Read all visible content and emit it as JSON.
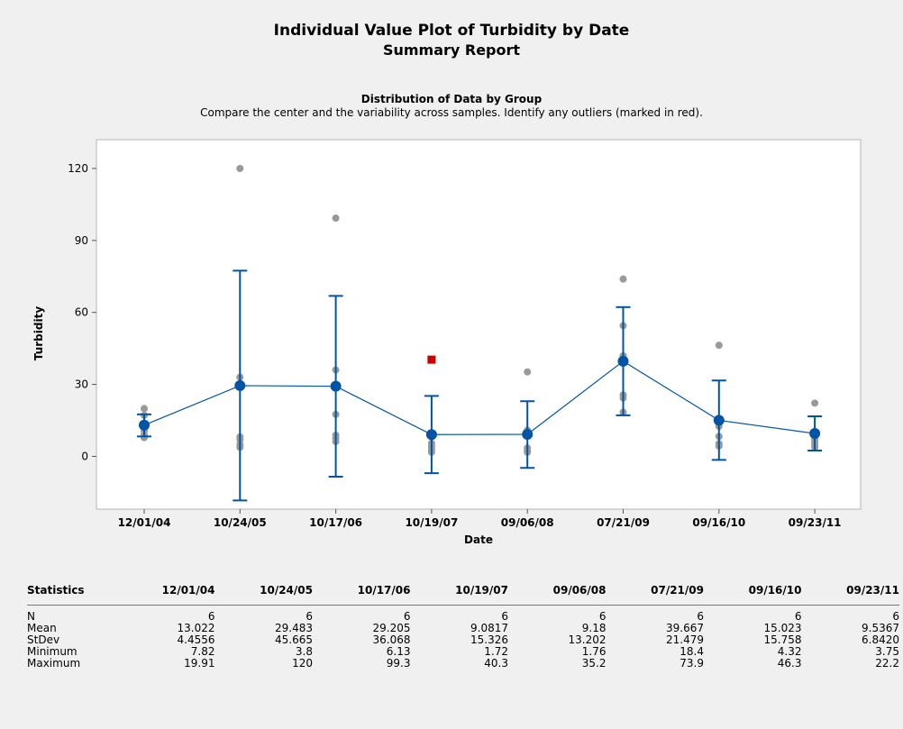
{
  "title": "Individual Value Plot of Turbidity by Date",
  "subtitle": "Summary Report",
  "section_title": "Distribution of Data by Group",
  "section_subtitle": "Compare the center and the variability across samples. Identify any outliers (marked in red).",
  "colors": {
    "mean": "#0054a6",
    "points": "#999999",
    "outlier": "#cc0000",
    "frame": "#b4b4b4"
  },
  "chart_data": {
    "type": "scatter",
    "xlabel": "Date",
    "ylabel": "Turbidity",
    "ylim": [
      -22,
      132
    ],
    "yticks": [
      0,
      30,
      60,
      90,
      120
    ],
    "categories": [
      "12/01/04",
      "10/24/05",
      "10/17/06",
      "10/19/07",
      "09/06/08",
      "07/21/09",
      "09/16/10",
      "09/23/11"
    ],
    "means": [
      13.022,
      29.483,
      29.205,
      9.0817,
      9.18,
      39.667,
      15.023,
      9.5367
    ],
    "interval_upper": [
      17.5,
      77.4,
      66.9,
      25.2,
      23.0,
      62.2,
      31.6,
      16.7
    ],
    "interval_lower": [
      8.3,
      -18.4,
      -8.5,
      -7.0,
      -4.8,
      17.1,
      -1.5,
      2.4
    ],
    "points": [
      [
        7.82,
        8.8,
        10.5,
        12.0,
        17.1,
        19.91
      ],
      [
        3.8,
        5.0,
        7.0,
        8.1,
        33.0,
        120
      ],
      [
        6.13,
        7.5,
        8.8,
        17.5,
        36.0,
        99.3
      ],
      [
        1.72,
        2.6,
        3.8,
        4.5,
        5.5
      ],
      [
        1.76,
        2.4,
        3.5,
        10.0,
        10.9,
        35.2
      ],
      [
        18.4,
        24.3,
        25.6,
        41.9,
        54.5,
        73.9
      ],
      [
        4.32,
        5.3,
        8.3,
        12.5,
        13.7,
        46.3
      ],
      [
        3.75,
        4.7,
        5.3,
        6.5,
        7.2,
        22.2
      ]
    ],
    "outliers": [
      null,
      null,
      null,
      40.3,
      null,
      null,
      null,
      null
    ]
  },
  "stats": {
    "header_label": "Statistics",
    "rows": [
      {
        "label": "N",
        "values": [
          "6",
          "6",
          "6",
          "6",
          "6",
          "6",
          "6",
          "6"
        ]
      },
      {
        "label": "Mean",
        "values": [
          "13.022",
          "29.483",
          "29.205",
          "9.0817",
          "9.18",
          "39.667",
          "15.023",
          "9.5367"
        ]
      },
      {
        "label": "StDev",
        "values": [
          "4.4556",
          "45.665",
          "36.068",
          "15.326",
          "13.202",
          "21.479",
          "15.758",
          "6.8420"
        ]
      },
      {
        "label": "Minimum",
        "values": [
          "7.82",
          "3.8",
          "6.13",
          "1.72",
          "1.76",
          "18.4",
          "4.32",
          "3.75"
        ]
      },
      {
        "label": "Maximum",
        "values": [
          "19.91",
          "120",
          "99.3",
          "40.3",
          "35.2",
          "73.9",
          "46.3",
          "22.2"
        ]
      }
    ]
  }
}
